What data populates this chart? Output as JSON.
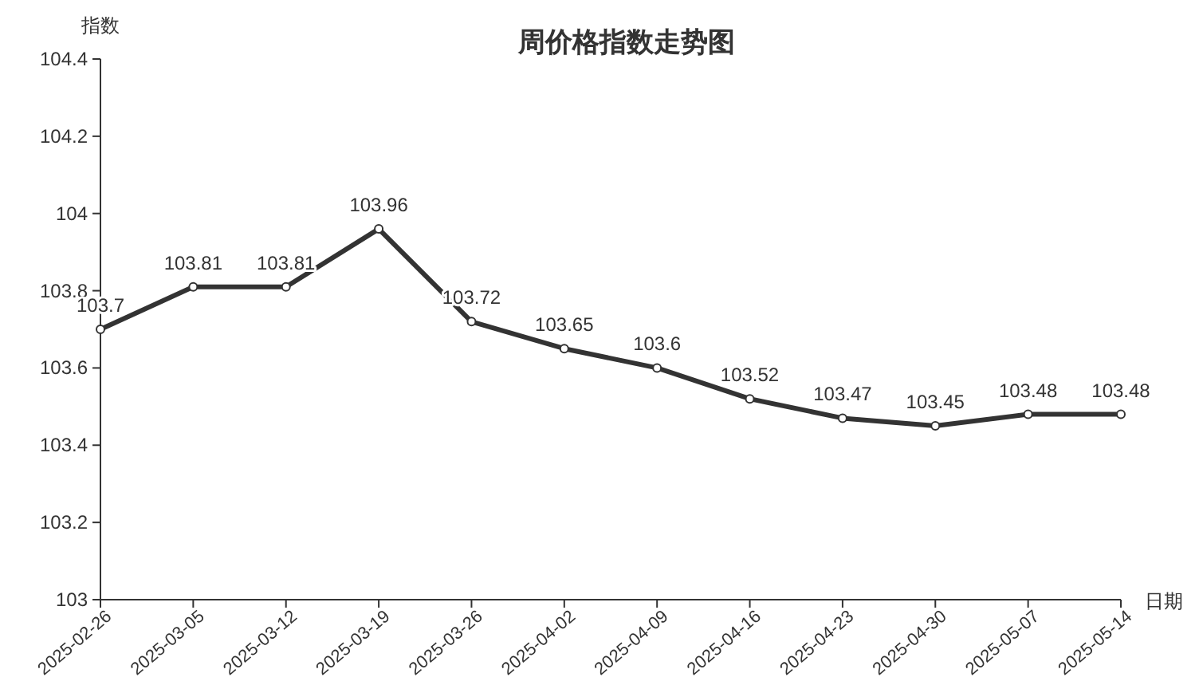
{
  "chart_data": {
    "type": "line",
    "title": "周价格指数走势图",
    "xlabel": "日期",
    "ylabel": "指数",
    "categories": [
      "2025-02-26",
      "2025-03-05",
      "2025-03-12",
      "2025-03-19",
      "2025-03-26",
      "2025-04-02",
      "2025-04-09",
      "2025-04-16",
      "2025-04-23",
      "2025-04-30",
      "2025-05-07",
      "2025-05-14"
    ],
    "series": [
      {
        "color": "#333333",
        "values": [
          103.7,
          103.81,
          103.81,
          103.96,
          103.72,
          103.65,
          103.6,
          103.52,
          103.47,
          103.45,
          103.48,
          103.48
        ]
      }
    ],
    "ylim": [
      103,
      104.4
    ],
    "yticks": [
      103,
      103.2,
      103.4,
      103.6,
      103.8,
      104,
      104.2,
      104.4
    ],
    "grid": false,
    "marker": "circle",
    "line_style": "solid",
    "data_labels": true
  }
}
